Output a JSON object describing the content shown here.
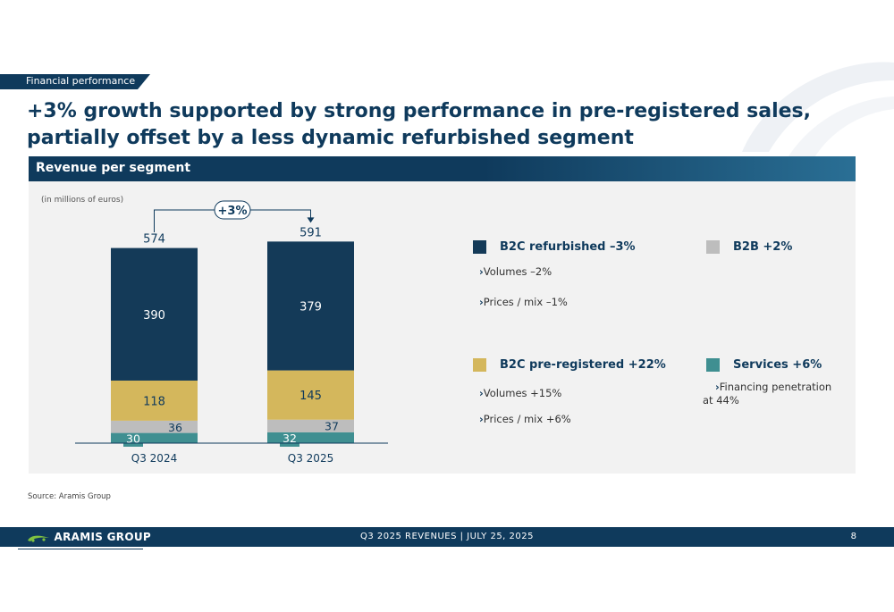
{
  "section_tag": "Financial performance",
  "title": "+3% growth supported by strong performance in pre-registered sales, partially offset by a less dynamic refurbished segment",
  "panel_title": "Revenue per segment",
  "unit_note": "(in millions of euros)",
  "colors": {
    "navy": "#0f3a5c",
    "b2c_refurbished": "#143a58",
    "b2c_preregistered": "#d4b75c",
    "b2b": "#bdbdbd",
    "services": "#3f8f91"
  },
  "chart_data": {
    "type": "bar",
    "stacked": true,
    "categories": [
      "Q3 2024",
      "Q3 2025"
    ],
    "series": [
      {
        "name": "Services",
        "values": [
          30,
          32
        ]
      },
      {
        "name": "B2B",
        "values": [
          36,
          37
        ]
      },
      {
        "name": "B2C pre-registered",
        "values": [
          118,
          145
        ]
      },
      {
        "name": "B2C refurbished",
        "values": [
          390,
          379
        ]
      }
    ],
    "totals": [
      574,
      591
    ],
    "growth_label": "+3%"
  },
  "legend": {
    "refurbished": {
      "label": "B2C refurbished –3%",
      "bullets": [
        "Volumes –2%",
        "Prices / mix –1%"
      ]
    },
    "b2b": {
      "label": "B2B +2%"
    },
    "preregistered": {
      "label": "B2C pre-registered +22%",
      "bullets": [
        "Volumes +15%",
        "Prices / mix +6%"
      ]
    },
    "services": {
      "label": "Services +6%",
      "bullets": [
        "Financing penetration",
        "at 44%"
      ]
    }
  },
  "bullet_marker": "›",
  "source": "Source: Aramis Group",
  "footer": {
    "logo_text": "ARAMIS GROUP",
    "center_text": "Q3 2025 REVENUES | JULY 25, 2025",
    "page_number": "8"
  }
}
